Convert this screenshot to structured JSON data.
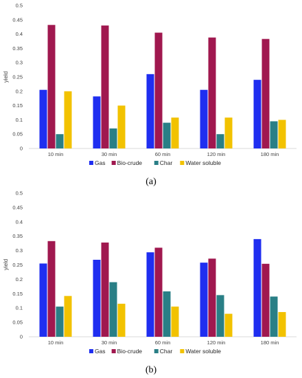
{
  "chart_data": [
    {
      "type": "bar",
      "panel_label": "(a)",
      "ylabel": "yield",
      "categories": [
        "10 min",
        "30 min",
        "60 min",
        "120 min",
        "180 min"
      ],
      "ylim": [
        0,
        0.5
      ],
      "yticks": [
        "0",
        "0.05",
        "0.1",
        "0.15",
        "0.2",
        "0.25",
        "0.3",
        "0.35",
        "0.4",
        "0.45",
        "0.5"
      ],
      "legend_position": "bottom",
      "series": [
        {
          "name": "Gas",
          "color": "#1f2ef0",
          "values": [
            0.205,
            0.182,
            0.26,
            0.205,
            0.24
          ]
        },
        {
          "name": "Bio-crude",
          "color": "#a0184f",
          "values": [
            0.432,
            0.43,
            0.405,
            0.388,
            0.383
          ]
        },
        {
          "name": "Char",
          "color": "#2a7f86",
          "values": [
            0.05,
            0.07,
            0.09,
            0.05,
            0.095
          ]
        },
        {
          "name": "Water soluble",
          "color": "#f2c200",
          "values": [
            0.2,
            0.15,
            0.108,
            0.108,
            0.1
          ]
        }
      ]
    },
    {
      "type": "bar",
      "panel_label": "(b)",
      "ylabel": "yield",
      "categories": [
        "10 min",
        "30 min",
        "60 min",
        "120 min",
        "180 min"
      ],
      "ylim": [
        0,
        0.5
      ],
      "yticks": [
        "0",
        "0.05",
        "0.1",
        "0.15",
        "0.2",
        "0.25",
        "0.3",
        "0.35",
        "0.4",
        "0.45",
        "0.5"
      ],
      "legend_position": "bottom",
      "series": [
        {
          "name": "Gas",
          "color": "#1f2ef0",
          "values": [
            0.255,
            0.268,
            0.294,
            0.258,
            0.34
          ]
        },
        {
          "name": "Bio-crude",
          "color": "#a0184f",
          "values": [
            0.333,
            0.328,
            0.31,
            0.272,
            0.254
          ]
        },
        {
          "name": "Char",
          "color": "#2a7f86",
          "values": [
            0.105,
            0.19,
            0.158,
            0.145,
            0.14
          ]
        },
        {
          "name": "Water soluble",
          "color": "#f2c200",
          "values": [
            0.142,
            0.115,
            0.105,
            0.08,
            0.086
          ]
        }
      ]
    }
  ]
}
